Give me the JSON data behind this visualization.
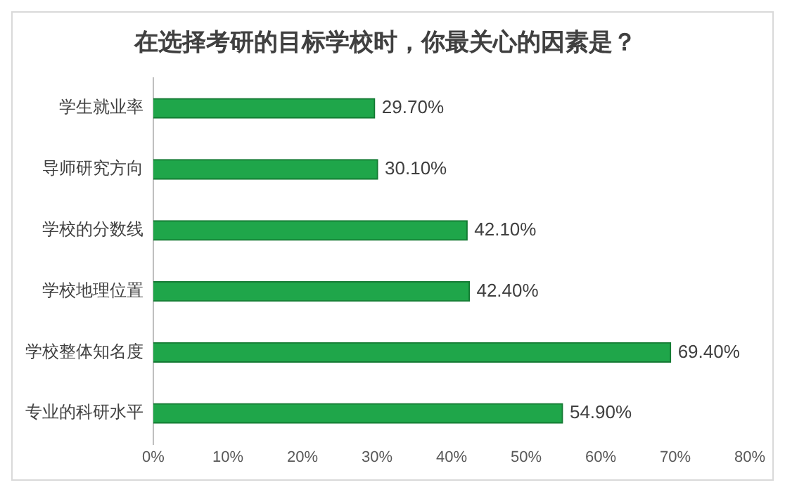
{
  "chart_data": {
    "type": "bar",
    "orientation": "horizontal",
    "title": "在选择考研的目标学校时，你最关心的因素是？",
    "categories": [
      "学生就业率",
      "导师研究方向",
      "学校的分数线",
      "学校地理位置",
      "学校整体知名度",
      "专业的科研水平"
    ],
    "values": [
      29.7,
      30.1,
      42.1,
      42.4,
      69.4,
      54.9
    ],
    "value_labels": [
      "29.70%",
      "30.10%",
      "42.10%",
      "42.40%",
      "69.40%",
      "54.90%"
    ],
    "color": "#1fa64a",
    "xlim": [
      0,
      80
    ],
    "xticks": [
      {
        "value": 0,
        "label": "0%"
      },
      {
        "value": 10,
        "label": "10%"
      },
      {
        "value": 20,
        "label": "20%"
      },
      {
        "value": 30,
        "label": "30%"
      },
      {
        "value": 40,
        "label": "40%"
      },
      {
        "value": 50,
        "label": "50%"
      },
      {
        "value": 60,
        "label": "60%"
      },
      {
        "value": 70,
        "label": "70%"
      },
      {
        "value": 80,
        "label": "80%"
      }
    ],
    "grid": false,
    "legend": false
  }
}
